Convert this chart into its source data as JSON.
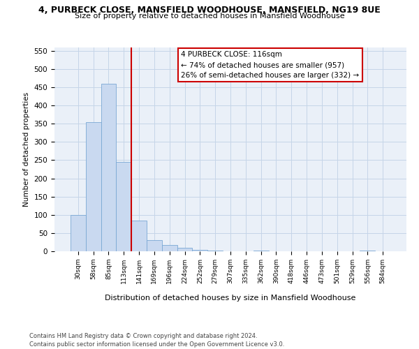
{
  "title_line1": "4, PURBECK CLOSE, MANSFIELD WOODHOUSE, MANSFIELD, NG19 8UE",
  "title_line2": "Size of property relative to detached houses in Mansfield Woodhouse",
  "xlabel": "Distribution of detached houses by size in Mansfield Woodhouse",
  "ylabel": "Number of detached properties",
  "footnote": "Contains HM Land Registry data © Crown copyright and database right 2024.\nContains public sector information licensed under the Open Government Licence v3.0.",
  "categories": [
    "30sqm",
    "58sqm",
    "85sqm",
    "113sqm",
    "141sqm",
    "169sqm",
    "196sqm",
    "224sqm",
    "252sqm",
    "279sqm",
    "307sqm",
    "335sqm",
    "362sqm",
    "390sqm",
    "418sqm",
    "446sqm",
    "473sqm",
    "501sqm",
    "529sqm",
    "556sqm",
    "584sqm"
  ],
  "values": [
    100,
    355,
    460,
    245,
    85,
    30,
    18,
    10,
    4,
    1,
    0,
    0,
    1,
    0,
    0,
    0,
    0,
    0,
    0,
    1,
    0
  ],
  "bar_color": "#c9d9f0",
  "bar_edge_color": "#7aa8d4",
  "grid_color": "#c5d5e8",
  "background_color": "#eaf0f8",
  "vline_x": 3.5,
  "vline_color": "#cc0000",
  "annotation_text": "4 PURBECK CLOSE: 116sqm\n← 74% of detached houses are smaller (957)\n26% of semi-detached houses are larger (332) →",
  "annotation_box_color": "#ffffff",
  "annotation_box_edge": "#cc0000",
  "annotation_fontsize": 7.5,
  "ylim": [
    0,
    560
  ],
  "yticks": [
    0,
    50,
    100,
    150,
    200,
    250,
    300,
    350,
    400,
    450,
    500,
    550
  ],
  "title1_fontsize": 9,
  "title2_fontsize": 8,
  "footnote_fontsize": 6
}
